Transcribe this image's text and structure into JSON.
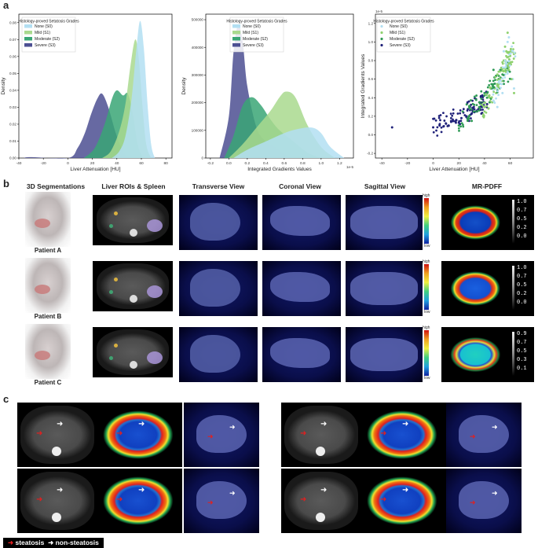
{
  "panel_letters": {
    "a": "a",
    "b": "b",
    "c": "c"
  },
  "chart_data": [
    {
      "type": "area",
      "subtype": "density",
      "ylabel": "Density",
      "xlabel": "Liver Attenuation [HU]",
      "legend_title": "Histology-proved Setatosis Grades",
      "legend_position": "top-left",
      "xlim": [
        -40,
        85
      ],
      "ylim": [
        0,
        0.085
      ],
      "xticks": [
        "-40",
        "-20",
        "0",
        "20",
        "40",
        "60",
        "80"
      ],
      "yticks": [
        "0.00",
        "0.01",
        "0.02",
        "0.03",
        "0.04",
        "0.05",
        "0.06",
        "0.07",
        "0.08"
      ],
      "series": [
        {
          "name": "None (S0)",
          "color": "#b3dff2",
          "peak_x": 59,
          "peak_y": 0.081,
          "x": [
            36,
            42,
            47,
            52,
            56,
            59,
            62,
            65,
            68,
            71
          ],
          "y": [
            0.0,
            0.004,
            0.013,
            0.035,
            0.065,
            0.081,
            0.065,
            0.032,
            0.008,
            0.0
          ]
        },
        {
          "name": "Mild (S1)",
          "color": "#a9d98e",
          "peak_x": 55,
          "peak_y": 0.07,
          "x": [
            28,
            35,
            42,
            47,
            51,
            55,
            58,
            61,
            64,
            68
          ],
          "y": [
            0.0,
            0.004,
            0.016,
            0.032,
            0.054,
            0.07,
            0.058,
            0.03,
            0.008,
            0.0
          ]
        },
        {
          "name": "Moderate (S2)",
          "color": "#3aa675",
          "peak_x": 40,
          "peak_y": 0.04,
          "x": [
            13,
            22,
            30,
            36,
            40,
            45,
            49,
            53,
            57,
            61
          ],
          "y": [
            0.0,
            0.006,
            0.02,
            0.035,
            0.04,
            0.037,
            0.038,
            0.026,
            0.008,
            0.0
          ]
        },
        {
          "name": "Severe (S3)",
          "color": "#4c4f92",
          "peak_x": 25,
          "peak_y": 0.038,
          "x": [
            -36,
            -30,
            0,
            8,
            14,
            19,
            24,
            28,
            33,
            39,
            45,
            50
          ],
          "y": [
            0.0,
            0.0005,
            0.0,
            0.006,
            0.015,
            0.026,
            0.035,
            0.038,
            0.03,
            0.015,
            0.004,
            0.0
          ]
        }
      ]
    },
    {
      "type": "area",
      "subtype": "density",
      "ylabel": "Density",
      "xlabel": "Integrated Gradients Values",
      "x_scale_note": "1e-5",
      "legend_title": "Histology-proved Setatosis Grades",
      "legend_position": "top-right",
      "xlim": [
        -0.25,
        1.35
      ],
      "ylim": [
        0,
        520000
      ],
      "xticks": [
        "-0.2",
        "0.0",
        "0.2",
        "0.4",
        "0.6",
        "0.8",
        "1.0",
        "1.2"
      ],
      "yticks": [
        "0",
        "100000",
        "200000",
        "300000",
        "400000",
        "500000"
      ],
      "series": [
        {
          "name": "None (S0)",
          "color": "#b3dff2",
          "x": [
            0.05,
            0.2,
            0.4,
            0.6,
            0.75,
            0.9,
            1.0,
            1.1,
            1.25
          ],
          "y": [
            0,
            30000,
            60000,
            90000,
            105000,
            110000,
            90000,
            40000,
            0
          ]
        },
        {
          "name": "Mild (S1)",
          "color": "#a9d98e",
          "x": [
            0.0,
            0.15,
            0.3,
            0.45,
            0.55,
            0.62,
            0.72,
            0.85,
            1.0,
            1.15
          ],
          "y": [
            0,
            50000,
            110000,
            170000,
            220000,
            240000,
            220000,
            120000,
            40000,
            0
          ]
        },
        {
          "name": "Moderate (S2)",
          "color": "#3aa675",
          "x": [
            -0.05,
            0.05,
            0.15,
            0.25,
            0.35,
            0.45,
            0.55,
            0.7,
            0.85,
            1.0
          ],
          "y": [
            0,
            80000,
            190000,
            220000,
            190000,
            140000,
            100000,
            60000,
            20000,
            0
          ]
        },
        {
          "name": "Severe (S3)",
          "color": "#4c4f92",
          "x": [
            -0.1,
            0.0,
            0.05,
            0.1,
            0.15,
            0.2,
            0.3,
            0.4,
            0.5,
            0.6,
            0.7
          ],
          "y": [
            0,
            150000,
            380000,
            480000,
            420000,
            260000,
            110000,
            60000,
            40000,
            15000,
            0
          ]
        }
      ]
    },
    {
      "type": "scatter",
      "ylabel": "Integrated Gradients Values",
      "xlabel": "Liver Attenuation [HU]",
      "y_scale_note": "1e-5",
      "legend_title": "Histology-proved Setatosis Grades",
      "legend_position": "top-left",
      "xlim": [
        -45,
        78
      ],
      "ylim": [
        -0.25,
        1.3
      ],
      "xticks": [
        "-40",
        "-20",
        "0",
        "20",
        "40",
        "60"
      ],
      "yticks": [
        "-0.2",
        "0.0",
        "0.2",
        "0.4",
        "0.6",
        "0.8",
        "1.0",
        "1.2"
      ],
      "series": [
        {
          "name": "None (S0)",
          "color": "#b3dff2",
          "x": [
            48,
            52,
            55,
            58,
            60,
            62,
            57,
            54,
            63,
            59,
            50,
            56
          ],
          "y": [
            0.55,
            0.7,
            0.9,
            1.0,
            0.85,
            0.6,
            0.75,
            0.45,
            0.5,
            1.05,
            0.3,
            0.65
          ]
        },
        {
          "name": "Mild (S1)",
          "color": "#8fd16f",
          "x": [
            40,
            44,
            48,
            50,
            52,
            55,
            57,
            59,
            61,
            63,
            46,
            53,
            58,
            49,
            60,
            56
          ],
          "y": [
            0.3,
            0.4,
            0.5,
            0.65,
            0.55,
            0.8,
            0.9,
            0.7,
            0.6,
            0.45,
            0.35,
            0.7,
            1.1,
            0.45,
            0.85,
            0.95
          ]
        },
        {
          "name": "Moderate (S2)",
          "color": "#2f9a55",
          "x": [
            20,
            28,
            33,
            38,
            42,
            45,
            48,
            51,
            54,
            36,
            40,
            44,
            30,
            47
          ],
          "y": [
            0.1,
            0.2,
            0.25,
            0.35,
            0.4,
            0.5,
            0.55,
            0.6,
            0.65,
            0.3,
            0.45,
            0.35,
            0.15,
            0.7
          ]
        },
        {
          "name": "Severe (S3)",
          "color": "#20227a",
          "x": [
            -32,
            0,
            5,
            10,
            14,
            18,
            22,
            26,
            30,
            34,
            38,
            42,
            12,
            20,
            28,
            8
          ],
          "y": [
            0.08,
            0.08,
            0.1,
            0.12,
            0.14,
            0.16,
            0.18,
            0.2,
            0.23,
            0.26,
            0.3,
            0.33,
            0.1,
            0.13,
            0.15,
            0.09
          ]
        }
      ]
    }
  ],
  "panel_b": {
    "headers": {
      "seg": "3D Segmentations",
      "roi": "Liver ROIs & Spleen",
      "trans": "Transverse View",
      "cor": "Coronal View",
      "sag": "Sagittal View",
      "pdff": "MR-PDFF"
    },
    "colorbar": {
      "high": "high",
      "low": "low"
    },
    "patients": [
      {
        "name": "Patient A",
        "pdff_ticks": [
          "1.0",
          "0.7",
          "0.5",
          "0.2",
          "0.0"
        ]
      },
      {
        "name": "Patient B",
        "pdff_ticks": [
          "1.0",
          "0.7",
          "0.5",
          "0.2",
          "0.0"
        ]
      },
      {
        "name": "Patient C",
        "pdff_ticks": [
          "0.9",
          "0.7",
          "0.5",
          "0.3",
          "0.1"
        ]
      }
    ]
  },
  "panel_c": {
    "legend": {
      "steatosis": "steatosis",
      "non_steatosis": "non-steatosis"
    },
    "colors": {
      "steatosis": "#e02020",
      "non_steatosis": "#ffffff"
    }
  }
}
